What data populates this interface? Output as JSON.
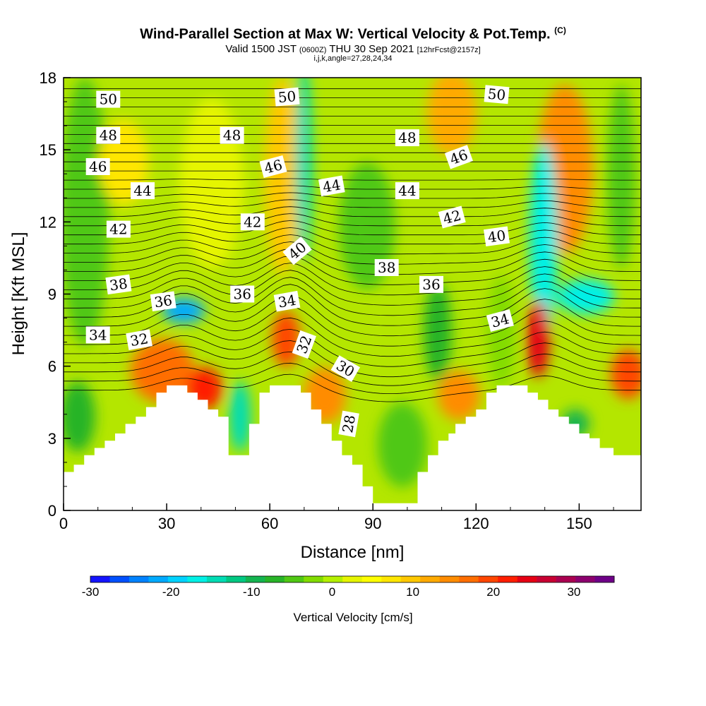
{
  "header": {
    "title": "Wind-Parallel Section at Max W: Vertical Velocity & Pot.Temp.",
    "copyright": "(C)",
    "valid_a": "Valid 1500 JST",
    "valid_z": "(0600Z)",
    "valid_b": "THU 30 Sep 2021",
    "fcst": "[12hrFcst@2157z]",
    "params": "i,j,k,angle=27,28,24,34"
  },
  "chart_data": {
    "type": "heatmap",
    "xlabel": "Distance [nm]",
    "ylabel": "Height [Kft MSL]",
    "xlim": [
      0,
      168
    ],
    "ylim": [
      0,
      18
    ],
    "xticks": [
      0,
      30,
      60,
      90,
      120,
      150
    ],
    "yticks": [
      0,
      3,
      6,
      9,
      12,
      15,
      18
    ],
    "colorbar": {
      "label": "Vertical Velocity [cm/s]",
      "range": [
        -30,
        35
      ],
      "step": 2.5,
      "ticks": [
        -30,
        -20,
        -10,
        0,
        10,
        20,
        30
      ],
      "colors": [
        "#1414ff",
        "#0050ff",
        "#0082ff",
        "#00aaff",
        "#00d2ff",
        "#00f0e6",
        "#00dcb4",
        "#00c882",
        "#14b450",
        "#28b428",
        "#50c814",
        "#82dc00",
        "#b4f000",
        "#e6f500",
        "#ffff00",
        "#ffe600",
        "#ffc800",
        "#ffaa00",
        "#ff8c00",
        "#ff6e00",
        "#ff4600",
        "#ff1e00",
        "#e60014",
        "#c80032",
        "#aa0050",
        "#8c006e",
        "#6e0087"
      ]
    },
    "terrain_kft": [
      [
        0,
        1.6
      ],
      [
        3,
        1.6
      ],
      [
        3,
        1.9
      ],
      [
        6,
        1.9
      ],
      [
        6,
        2.3
      ],
      [
        9,
        2.3
      ],
      [
        9,
        2.6
      ],
      [
        12,
        2.6
      ],
      [
        12,
        2.9
      ],
      [
        15,
        2.9
      ],
      [
        15,
        3.2
      ],
      [
        18,
        3.2
      ],
      [
        18,
        3.6
      ],
      [
        21,
        3.6
      ],
      [
        21,
        3.9
      ],
      [
        24,
        3.9
      ],
      [
        24,
        4.3
      ],
      [
        27,
        4.3
      ],
      [
        27,
        4.9
      ],
      [
        30,
        4.9
      ],
      [
        30,
        5.2
      ],
      [
        36,
        5.2
      ],
      [
        36,
        4.9
      ],
      [
        39,
        4.9
      ],
      [
        39,
        4.6
      ],
      [
        42,
        4.6
      ],
      [
        42,
        4.2
      ],
      [
        45,
        4.2
      ],
      [
        45,
        3.9
      ],
      [
        48,
        3.9
      ],
      [
        48,
        2.3
      ],
      [
        54,
        2.3
      ],
      [
        54,
        3.6
      ],
      [
        57,
        3.6
      ],
      [
        57,
        4.9
      ],
      [
        60,
        4.9
      ],
      [
        60,
        5.2
      ],
      [
        69,
        5.2
      ],
      [
        69,
        4.9
      ],
      [
        72,
        4.9
      ],
      [
        72,
        4.2
      ],
      [
        75,
        4.2
      ],
      [
        75,
        3.6
      ],
      [
        78,
        3.6
      ],
      [
        78,
        2.9
      ],
      [
        81,
        2.9
      ],
      [
        81,
        2.3
      ],
      [
        84,
        2.3
      ],
      [
        84,
        1.9
      ],
      [
        87,
        1.9
      ],
      [
        87,
        1.0
      ],
      [
        90,
        1.0
      ],
      [
        90,
        0.3
      ],
      [
        96,
        0.3
      ],
      [
        96,
        0.3
      ],
      [
        103,
        0.3
      ],
      [
        103,
        1.6
      ],
      [
        106,
        1.6
      ],
      [
        106,
        2.3
      ],
      [
        109,
        2.3
      ],
      [
        109,
        2.9
      ],
      [
        112,
        2.9
      ],
      [
        112,
        3.2
      ],
      [
        114,
        3.2
      ],
      [
        114,
        3.6
      ],
      [
        117,
        3.6
      ],
      [
        117,
        3.9
      ],
      [
        120,
        3.9
      ],
      [
        120,
        4.2
      ],
      [
        123,
        4.2
      ],
      [
        123,
        4.9
      ],
      [
        126,
        4.9
      ],
      [
        126,
        5.2
      ],
      [
        135,
        5.2
      ],
      [
        135,
        4.9
      ],
      [
        138,
        4.9
      ],
      [
        138,
        4.6
      ],
      [
        141,
        4.6
      ],
      [
        141,
        4.2
      ],
      [
        144,
        4.2
      ],
      [
        144,
        3.9
      ],
      [
        147,
        3.9
      ],
      [
        147,
        3.6
      ],
      [
        150,
        3.6
      ],
      [
        150,
        3.2
      ],
      [
        153,
        3.2
      ],
      [
        153,
        3.0
      ],
      [
        156,
        3.0
      ],
      [
        156,
        2.6
      ],
      [
        160,
        2.6
      ],
      [
        160,
        2.3
      ],
      [
        168,
        2.3
      ]
    ],
    "contour_labels": [
      {
        "text": "50",
        "x": 13,
        "y": 17.1,
        "angle": 0
      },
      {
        "text": "50",
        "x": 65,
        "y": 17.2,
        "angle": -5
      },
      {
        "text": "50",
        "x": 126,
        "y": 17.3,
        "angle": 5
      },
      {
        "text": "48",
        "x": 13,
        "y": 15.6,
        "angle": 0
      },
      {
        "text": "48",
        "x": 49,
        "y": 15.6,
        "angle": 0
      },
      {
        "text": "48",
        "x": 100,
        "y": 15.5,
        "angle": 0
      },
      {
        "text": "46",
        "x": 10,
        "y": 14.3,
        "angle": 0
      },
      {
        "text": "46",
        "x": 61,
        "y": 14.3,
        "angle": -15
      },
      {
        "text": "46",
        "x": 115,
        "y": 14.7,
        "angle": -20
      },
      {
        "text": "44",
        "x": 23,
        "y": 13.3,
        "angle": 0
      },
      {
        "text": "44",
        "x": 78,
        "y": 13.5,
        "angle": -10
      },
      {
        "text": "44",
        "x": 100,
        "y": 13.3,
        "angle": 0
      },
      {
        "text": "42",
        "x": 16,
        "y": 11.7,
        "angle": 0
      },
      {
        "text": "42",
        "x": 55,
        "y": 12.0,
        "angle": 0
      },
      {
        "text": "42",
        "x": 113,
        "y": 12.2,
        "angle": -15
      },
      {
        "text": "40",
        "x": 68,
        "y": 10.8,
        "angle": -40
      },
      {
        "text": "40",
        "x": 126,
        "y": 11.4,
        "angle": -8
      },
      {
        "text": "38",
        "x": 16,
        "y": 9.4,
        "angle": -8
      },
      {
        "text": "38",
        "x": 94,
        "y": 10.1,
        "angle": 0
      },
      {
        "text": "36",
        "x": 29,
        "y": 8.7,
        "angle": -8
      },
      {
        "text": "36",
        "x": 52,
        "y": 9.0,
        "angle": 0
      },
      {
        "text": "36",
        "x": 107,
        "y": 9.4,
        "angle": 0
      },
      {
        "text": "34",
        "x": 10,
        "y": 7.3,
        "angle": 0
      },
      {
        "text": "34",
        "x": 65,
        "y": 8.7,
        "angle": -10
      },
      {
        "text": "34",
        "x": 127,
        "y": 7.9,
        "angle": -15
      },
      {
        "text": "32",
        "x": 22,
        "y": 7.1,
        "angle": -10
      },
      {
        "text": "32",
        "x": 70,
        "y": 6.9,
        "angle": -70
      },
      {
        "text": "30",
        "x": 82,
        "y": 5.9,
        "angle": 30
      },
      {
        "text": "28",
        "x": 83,
        "y": 3.6,
        "angle": -80
      }
    ]
  }
}
